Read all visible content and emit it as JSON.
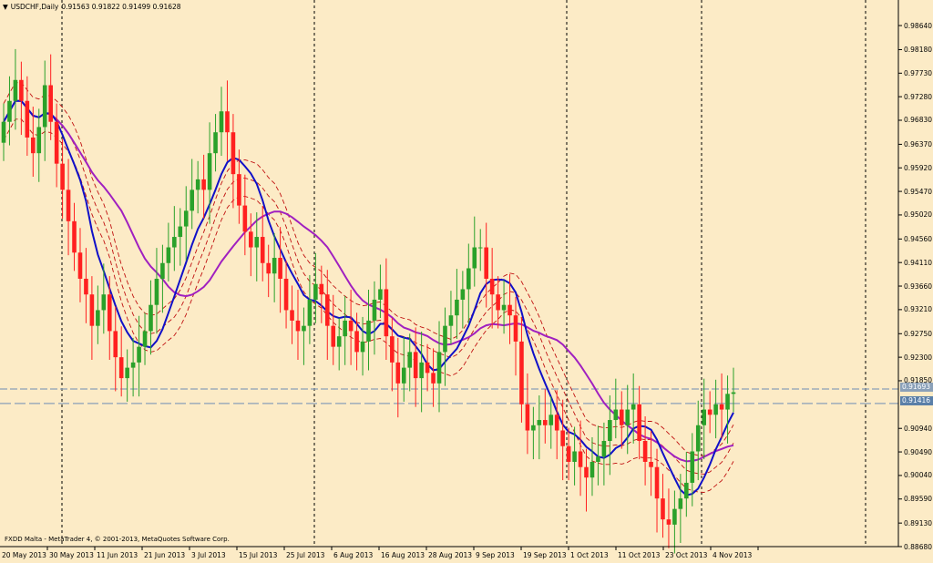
{
  "header": {
    "menu_icon": "triangle-down-icon",
    "symbol": "USDCHF,Daily",
    "ohlc": "0.91563 0.91822 0.91499 0.91628"
  },
  "footer": {
    "copyright": "FXDD Malta - MetaTrader 4, © 2001-2013, MetaQuotes Software Corp."
  },
  "price_tags": {
    "bid": "0.91693",
    "line2": "0.91416"
  },
  "colors": {
    "background": "#fcebc6",
    "bull_candle": "#2aa12a",
    "bear_candle": "#ff2020",
    "ma_fast": "#1010c8",
    "ma_slow": "#a020c0",
    "envelope": "#c01010",
    "grid": "#000000",
    "bid_line": "#8aa0b8"
  },
  "chart_data": {
    "type": "candlestick",
    "symbol": "USDCHF",
    "timeframe": "Daily",
    "ylim": [
      0.8868,
      0.9885
    ],
    "y_ticks": [
      "0.98640",
      "0.98180",
      "0.97730",
      "0.97280",
      "0.96830",
      "0.96370",
      "0.95920",
      "0.95470",
      "0.95020",
      "0.94560",
      "0.94110",
      "0.93660",
      "0.93210",
      "0.92750",
      "0.92300",
      "0.91850",
      "0.90940",
      "0.90490",
      "0.90040",
      "0.89590",
      "0.89130",
      "0.88680"
    ],
    "x_ticks": [
      "20 May 2013",
      "30 May 2013",
      "11 Jun 2013",
      "21 Jun 2013",
      "3 Jul 2013",
      "15 Jul 2013",
      "25 Jul 2013",
      "6 Aug 2013",
      "16 Aug 2013",
      "28 Aug 2013",
      "9 Sep 2013",
      "19 Sep 2013",
      "1 Oct 2013",
      "11 Oct 2013",
      "23 Oct 2013",
      "4 Nov 2013"
    ],
    "series_close": [
      0.968,
      0.972,
      0.976,
      0.972,
      0.965,
      0.962,
      0.967,
      0.975,
      0.968,
      0.96,
      0.955,
      0.949,
      0.943,
      0.938,
      0.935,
      0.929,
      0.932,
      0.935,
      0.928,
      0.923,
      0.919,
      0.921,
      0.922,
      0.925,
      0.928,
      0.933,
      0.938,
      0.941,
      0.944,
      0.946,
      0.948,
      0.951,
      0.955,
      0.957,
      0.955,
      0.962,
      0.966,
      0.97,
      0.966,
      0.958,
      0.952,
      0.947,
      0.944,
      0.946,
      0.941,
      0.939,
      0.942,
      0.938,
      0.932,
      0.93,
      0.928,
      0.929,
      0.934,
      0.937,
      0.935,
      0.929,
      0.925,
      0.927,
      0.93,
      0.928,
      0.924,
      0.926,
      0.93,
      0.934,
      0.936,
      0.927,
      0.922,
      0.918,
      0.921,
      0.924,
      0.919,
      0.922,
      0.92,
      0.918,
      0.924,
      0.929,
      0.931,
      0.934,
      0.936,
      0.94,
      0.944,
      0.944,
      0.938,
      0.935,
      0.932,
      0.933,
      0.931,
      0.926,
      0.914,
      0.909,
      0.91,
      0.911,
      0.91,
      0.912,
      0.909,
      0.906,
      0.903,
      0.905,
      0.902,
      0.9,
      0.903,
      0.904,
      0.907,
      0.911,
      0.913,
      0.91,
      0.913,
      0.914,
      0.907,
      0.903,
      0.902,
      0.896,
      0.892,
      0.891,
      0.894,
      0.896,
      0.899,
      0.905,
      0.91,
      0.913,
      0.912,
      0.914,
      0.913,
      0.916,
      0.9163
    ],
    "price_lines": [
      0.91693,
      0.91416
    ]
  }
}
